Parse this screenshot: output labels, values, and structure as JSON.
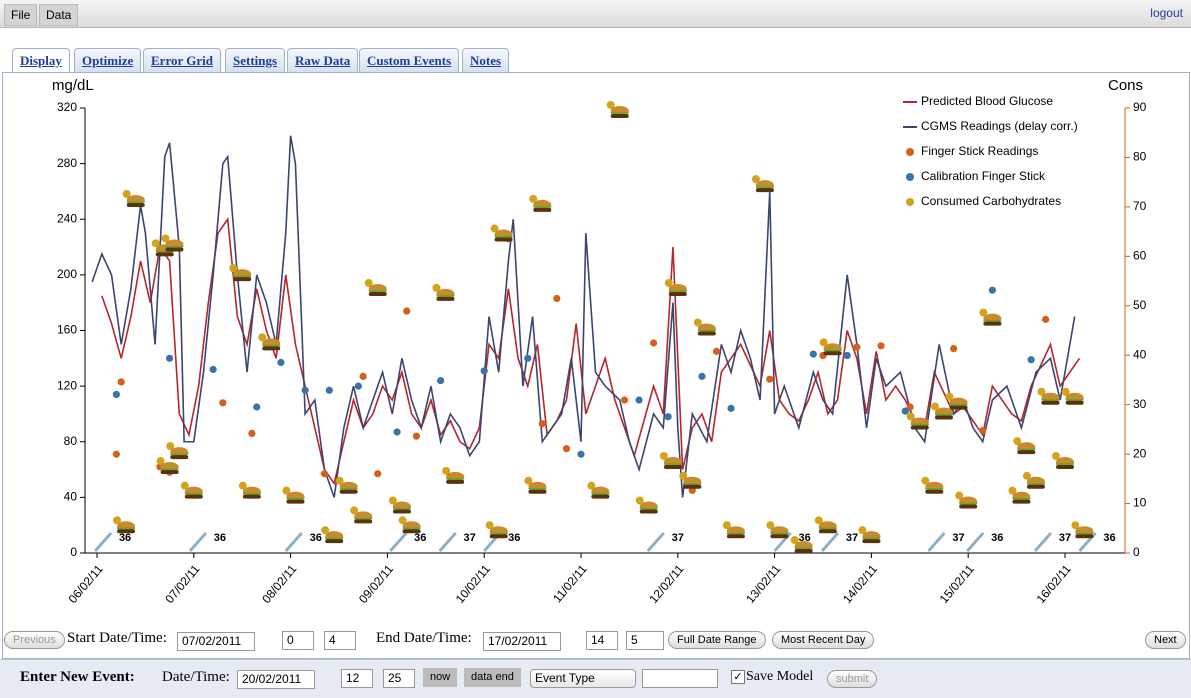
{
  "menu": {
    "file": "File",
    "data": "Data",
    "logout": "logout"
  },
  "tabs": [
    "Display",
    "Optimize",
    "Error Grid",
    "Settings",
    "Raw Data",
    "Custom Events",
    "Notes"
  ],
  "controls": {
    "previous": "Previous",
    "start_label": "Start Date/Time:",
    "start_date": "07/02/2011",
    "start_hour": "0",
    "start_min": "4",
    "end_label": "End Date/Time:",
    "end_date": "17/02/2011",
    "end_hour": "14",
    "end_min": "5",
    "full_range": "Full Date Range",
    "recent_day": "Most Recent Day",
    "next": "Next"
  },
  "new_event": {
    "title": "Enter New Event:",
    "date_label": "Date/Time:",
    "date": "20/02/2011",
    "hour": "12",
    "minute": "25",
    "now": "now",
    "data_end": "data end",
    "event_type": "Event Type",
    "save_model": "Save Model",
    "submit": "submit"
  },
  "chart_data": {
    "type": "line",
    "y_label": "mg/dL",
    "y2_label": "Cons",
    "legend": "top-right",
    "xlim": [
      5.876,
      16.62
    ],
    "ylim": [
      0,
      320
    ],
    "y2lim": [
      0,
      90
    ],
    "xticks": [
      {
        "value": 6,
        "label": "06/02/11"
      },
      {
        "value": 7,
        "label": "07/02/11"
      },
      {
        "value": 8,
        "label": "08/02/11"
      },
      {
        "value": 9,
        "label": "09/02/11"
      },
      {
        "value": 10,
        "label": "10/02/11"
      },
      {
        "value": 11,
        "label": "11/02/11"
      },
      {
        "value": 12,
        "label": "12/02/11"
      },
      {
        "value": 13,
        "label": "13/02/11"
      },
      {
        "value": 14,
        "label": "14/02/11"
      },
      {
        "value": 15,
        "label": "15/02/11"
      },
      {
        "value": 16,
        "label": "16/02/11"
      }
    ],
    "yticks": [
      0,
      40,
      80,
      120,
      160,
      200,
      240,
      280,
      320
    ],
    "y2ticks": [
      0,
      10,
      20,
      30,
      40,
      50,
      60,
      70,
      80,
      90
    ],
    "series": [
      {
        "name": "Predicted Blood Glucose",
        "type": "line",
        "color": "#b5262d",
        "x": [
          6.05,
          6.15,
          6.25,
          6.35,
          6.45,
          6.55,
          6.65,
          6.75,
          6.85,
          6.95,
          7.05,
          7.15,
          7.25,
          7.35,
          7.45,
          7.55,
          7.65,
          7.75,
          7.85,
          7.95,
          8.05,
          8.15,
          8.25,
          8.35,
          8.45,
          8.55,
          8.65,
          8.75,
          8.85,
          8.95,
          9.05,
          9.15,
          9.25,
          9.35,
          9.45,
          9.55,
          9.65,
          9.75,
          9.85,
          9.95,
          10.05,
          10.15,
          10.25,
          10.35,
          10.45,
          10.55,
          10.65,
          10.75,
          10.85,
          10.95,
          11.05,
          11.15,
          11.25,
          11.35,
          11.45,
          11.55,
          11.65,
          11.75,
          11.85,
          11.95,
          12.05,
          12.15,
          12.25,
          12.35,
          12.45,
          12.55,
          12.65,
          12.75,
          12.85,
          12.95,
          13.05,
          13.15,
          13.25,
          13.35,
          13.45,
          13.55,
          13.65,
          13.75,
          13.85,
          13.95,
          14.05,
          14.15,
          14.25,
          14.35,
          14.45,
          14.55,
          14.65,
          14.75,
          14.85,
          14.95,
          15.05,
          15.15,
          15.25,
          15.35,
          15.45,
          15.55,
          15.65,
          15.75,
          15.85,
          15.95,
          16.05,
          16.15
        ],
        "values": [
          185,
          165,
          140,
          170,
          210,
          180,
          220,
          210,
          100,
          85,
          120,
          180,
          230,
          240,
          170,
          150,
          190,
          160,
          140,
          200,
          150,
          120,
          90,
          60,
          50,
          80,
          110,
          90,
          100,
          120,
          110,
          130,
          100,
          90,
          110,
          85,
          95,
          80,
          75,
          90,
          150,
          140,
          190,
          140,
          120,
          150,
          85,
          95,
          110,
          165,
          100,
          120,
          140,
          110,
          90,
          70,
          95,
          120,
          100,
          220,
          60,
          90,
          100,
          80,
          130,
          140,
          150,
          135,
          120,
          160,
          110,
          100,
          95,
          110,
          130,
          100,
          110,
          160,
          140,
          100,
          145,
          110,
          120,
          110,
          95,
          90,
          130,
          115,
          100,
          105,
          95,
          85,
          120,
          110,
          100,
          95,
          120,
          135,
          150,
          120,
          130,
          140
        ]
      },
      {
        "name": "CGMS Readings (delay corr.)",
        "type": "line",
        "color": "#3b4670",
        "x": [
          5.95,
          6.05,
          6.15,
          6.25,
          6.35,
          6.45,
          6.5,
          6.6,
          6.7,
          6.75,
          6.85,
          6.9,
          7.0,
          7.1,
          7.2,
          7.3,
          7.35,
          7.45,
          7.55,
          7.65,
          7.75,
          7.85,
          7.95,
          8.0,
          8.05,
          8.15,
          8.25,
          8.35,
          8.45,
          8.55,
          8.65,
          8.75,
          8.85,
          8.95,
          9.05,
          9.15,
          9.25,
          9.35,
          9.45,
          9.55,
          9.65,
          9.75,
          9.85,
          9.95,
          10.05,
          10.15,
          10.25,
          10.3,
          10.4,
          10.5,
          10.6,
          10.7,
          10.8,
          10.9,
          11.0,
          11.05,
          11.15,
          11.25,
          11.4,
          11.5,
          11.6,
          11.75,
          11.85,
          11.95,
          12.0,
          12.05,
          12.15,
          12.3,
          12.45,
          12.55,
          12.65,
          12.75,
          12.85,
          12.95,
          13.0,
          13.1,
          13.25,
          13.4,
          13.5,
          13.6,
          13.75,
          13.85,
          13.95,
          14.05,
          14.15,
          14.3,
          14.45,
          14.55,
          14.7,
          14.85,
          14.95,
          15.05,
          15.15,
          15.25,
          15.4,
          15.55,
          15.7,
          15.85,
          15.95,
          16.05,
          16.1
        ],
        "values": [
          195,
          215,
          200,
          150,
          190,
          250,
          230,
          150,
          285,
          295,
          220,
          80,
          80,
          130,
          200,
          280,
          285,
          200,
          130,
          200,
          180,
          150,
          230,
          300,
          280,
          100,
          110,
          60,
          40,
          90,
          120,
          90,
          110,
          130,
          100,
          140,
          110,
          90,
          120,
          80,
          100,
          90,
          70,
          80,
          170,
          130,
          210,
          240,
          120,
          170,
          80,
          90,
          100,
          140,
          80,
          230,
          130,
          120,
          110,
          80,
          60,
          100,
          90,
          180,
          90,
          40,
          100,
          80,
          150,
          130,
          160,
          140,
          110,
          260,
          100,
          120,
          90,
          130,
          110,
          100,
          200,
          150,
          90,
          140,
          120,
          130,
          90,
          80,
          150,
          100,
          110,
          90,
          80,
          110,
          120,
          90,
          130,
          140,
          110,
          150,
          170
        ]
      },
      {
        "name": "Finger Stick Readings",
        "type": "scatter",
        "color": "#d4601b",
        "x": [
          6.2,
          6.25,
          6.65,
          6.75,
          7.3,
          7.6,
          8.35,
          8.75,
          8.9,
          9.2,
          9.3,
          10.25,
          10.6,
          10.75,
          10.85,
          11.45,
          11.75,
          12.15,
          12.4,
          12.95,
          13.5,
          13.85,
          14.1,
          14.4,
          14.85,
          15.15,
          15.8
        ],
        "values": [
          71,
          123,
          62,
          58,
          108,
          86,
          57,
          127,
          57,
          174,
          84,
          226,
          93,
          183,
          75,
          110,
          151,
          45,
          145,
          125,
          142,
          148,
          149,
          105,
          147,
          88,
          168
        ]
      },
      {
        "name": "Calibration Finger Stick",
        "type": "scatter",
        "color": "#3a73a8",
        "x": [
          6.2,
          6.75,
          7.2,
          7.65,
          7.9,
          8.15,
          8.4,
          8.7,
          9.1,
          9.55,
          10.0,
          10.45,
          11.0,
          11.6,
          11.9,
          12.25,
          12.55,
          13.4,
          13.75,
          14.35,
          15.25,
          15.65
        ],
        "values": [
          114,
          140,
          132,
          105,
          137,
          117,
          117,
          120,
          87,
          124,
          131,
          140,
          71,
          110,
          98,
          127,
          104,
          143,
          142,
          102,
          189,
          139
        ]
      },
      {
        "name": "Consumed Carbohydrates",
        "type": "scatter",
        "axis": "y2",
        "color": "#d4a21b",
        "x": [
          6.4,
          6.7,
          6.8,
          7.5,
          7.8,
          8.9,
          9.6,
          10.2,
          10.6,
          11.4,
          12.0,
          12.3,
          12.9,
          13.6,
          14.5,
          14.9,
          15.25,
          15.85,
          6.3,
          6.75,
          7.0,
          7.6,
          8.05,
          8.45,
          8.75,
          9.25,
          9.7,
          10.15,
          10.55,
          11.2,
          11.7,
          12.6,
          13.3,
          13.55,
          14.0,
          14.65,
          15.0,
          15.55,
          16.2,
          15.6,
          16.0,
          16.1,
          6.85,
          8.6,
          9.15,
          11.95,
          12.15,
          15.7,
          14.75,
          13.05
        ],
        "values": [
          71,
          61,
          62,
          56,
          42,
          53,
          52,
          64,
          70,
          89,
          53,
          45,
          74,
          41,
          26,
          30,
          47,
          31,
          5,
          17,
          12,
          12,
          11,
          3,
          7,
          5,
          15,
          4,
          13,
          12,
          9,
          4,
          1,
          5,
          3,
          13,
          10,
          11,
          4,
          21,
          18,
          31,
          20,
          13,
          9,
          18,
          14,
          14,
          28,
          4
        ]
      }
    ],
    "insulin": {
      "x": [
        6.29,
        7.27,
        8.26,
        9.34,
        9.85,
        10.31,
        12.0,
        13.31,
        13.8,
        14.9,
        15.3,
        16.0,
        16.46
      ],
      "values": [
        36,
        36,
        36,
        36,
        37,
        36,
        37,
        36,
        37,
        37,
        36,
        37,
        36
      ]
    }
  }
}
